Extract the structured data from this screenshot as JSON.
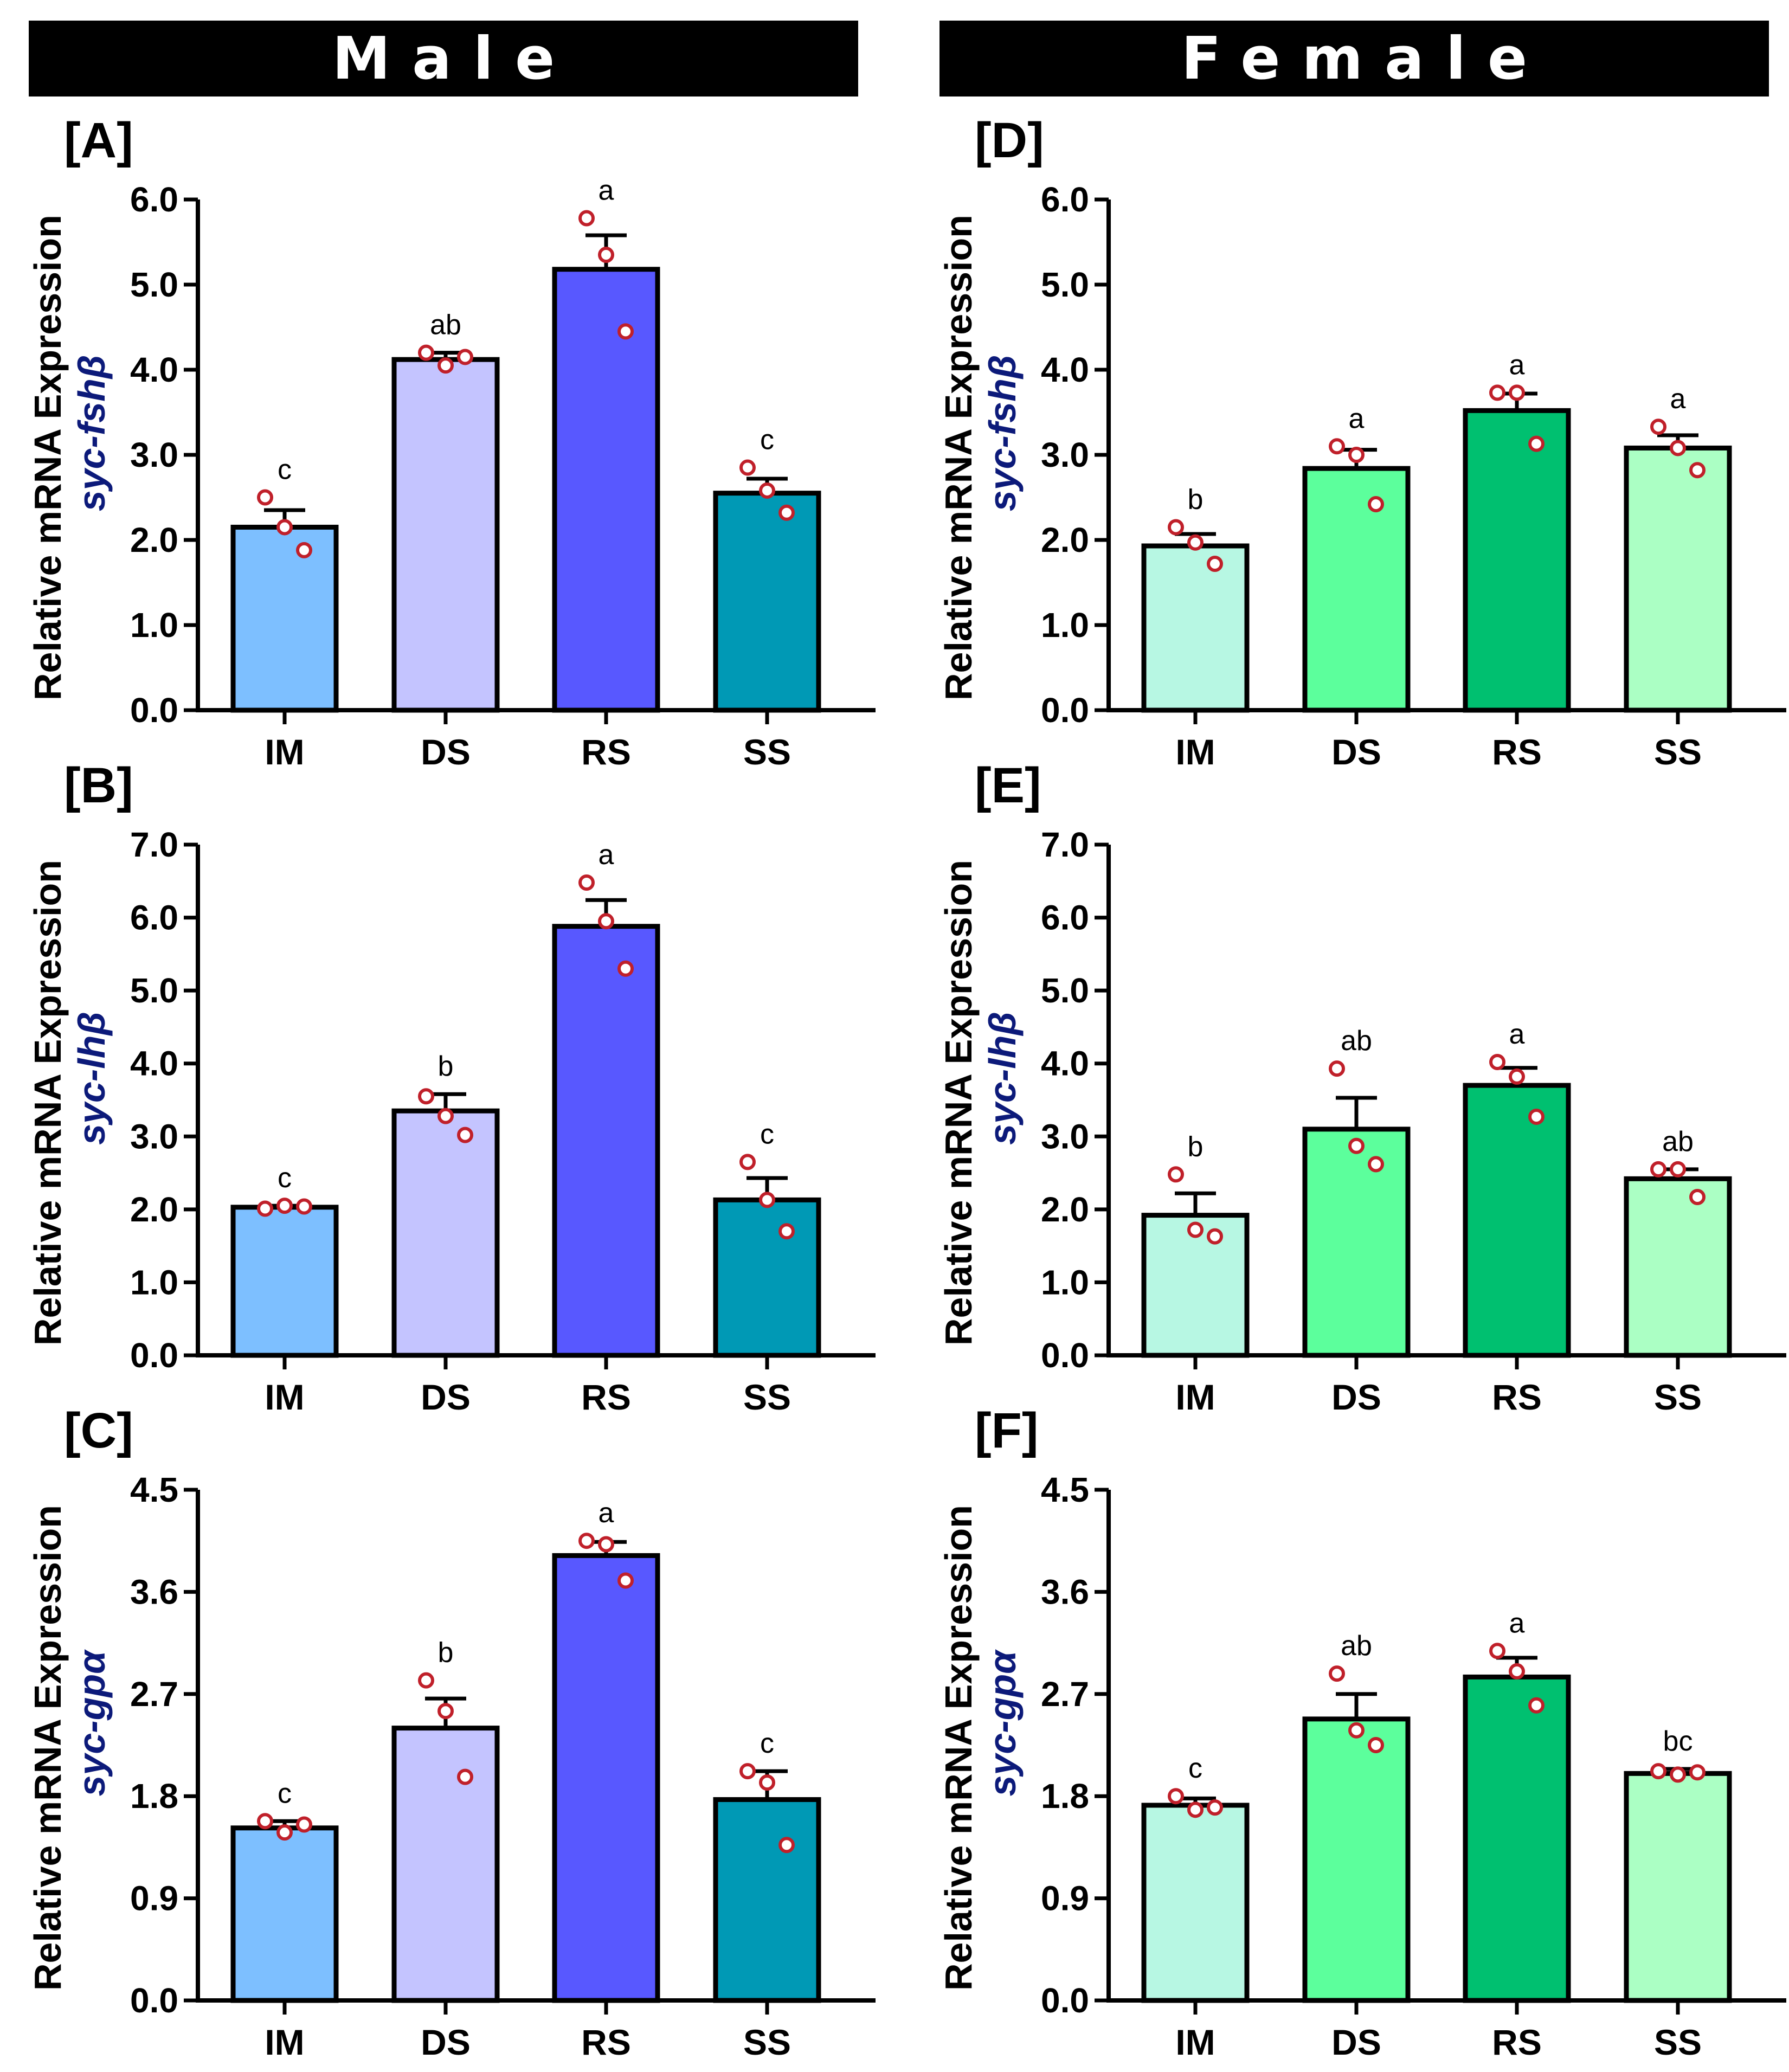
{
  "headers": {
    "male": "Male",
    "female": "Female"
  },
  "chart_data": [
    {
      "id": "A",
      "panel_label": "[A]",
      "type": "bar",
      "ylabel": "Relative mRNA Expression",
      "gene": "syc-fshβ",
      "categories": [
        "IM",
        "DS",
        "RS",
        "SS"
      ],
      "values": [
        2.15,
        4.12,
        5.18,
        2.55
      ],
      "errors": [
        0.2,
        0.08,
        0.4,
        0.17
      ],
      "points": [
        [
          2.5,
          2.15,
          1.88
        ],
        [
          4.2,
          4.05,
          4.15
        ],
        [
          5.78,
          5.35,
          4.45
        ],
        [
          2.85,
          2.58,
          2.32
        ]
      ],
      "letters": [
        "c",
        "ab",
        "a",
        "c"
      ],
      "ylim": [
        0,
        6.0
      ],
      "yticks": [
        "0.0",
        "1.0",
        "2.0",
        "3.0",
        "4.0",
        "5.0",
        "6.0"
      ],
      "colors": [
        "#7dbfff",
        "#c4c4ff",
        "#5858ff",
        "#0099b5"
      ]
    },
    {
      "id": "B",
      "panel_label": "[B]",
      "type": "bar",
      "ylabel": "Relative mRNA Expression",
      "gene": "syc-lhβ",
      "categories": [
        "IM",
        "DS",
        "RS",
        "SS"
      ],
      "values": [
        2.03,
        3.35,
        5.88,
        2.13
      ],
      "errors": [
        0.02,
        0.23,
        0.36,
        0.3
      ],
      "points": [
        [
          2.01,
          2.05,
          2.04
        ],
        [
          3.55,
          3.28,
          3.02
        ],
        [
          6.48,
          5.95,
          5.3
        ],
        [
          2.65,
          2.13,
          1.7
        ]
      ],
      "letters": [
        "c",
        "b",
        "a",
        "c"
      ],
      "ylim": [
        0,
        7.0
      ],
      "yticks": [
        "0.0",
        "1.0",
        "2.0",
        "3.0",
        "4.0",
        "5.0",
        "6.0",
        "7.0"
      ],
      "colors": [
        "#7dbfff",
        "#c4c4ff",
        "#5858ff",
        "#0099b5"
      ]
    },
    {
      "id": "C",
      "panel_label": "[C]",
      "type": "bar",
      "ylabel": "Relative mRNA Expression",
      "gene": "syc-gpα",
      "categories": [
        "IM",
        "DS",
        "RS",
        "SS"
      ],
      "values": [
        1.52,
        2.4,
        3.92,
        1.77
      ],
      "errors": [
        0.06,
        0.26,
        0.12,
        0.25
      ],
      "points": [
        [
          1.58,
          1.48,
          1.55
        ],
        [
          2.82,
          2.55,
          1.97
        ],
        [
          4.05,
          4.02,
          3.7
        ],
        [
          2.02,
          1.92,
          1.37
        ]
      ],
      "letters": [
        "c",
        "b",
        "a",
        "c"
      ],
      "ylim": [
        0,
        4.5
      ],
      "yticks": [
        "0.0",
        "0.9",
        "1.8",
        "2.7",
        "3.6",
        "4.5"
      ],
      "colors": [
        "#7dbfff",
        "#c4c4ff",
        "#5858ff",
        "#0099b5"
      ]
    },
    {
      "id": "D",
      "panel_label": "[D]",
      "type": "bar",
      "ylabel": "Relative mRNA Expression",
      "gene": "syc-fshβ",
      "categories": [
        "IM",
        "DS",
        "RS",
        "SS"
      ],
      "values": [
        1.93,
        2.84,
        3.52,
        3.08
      ],
      "errors": [
        0.14,
        0.22,
        0.2,
        0.15
      ],
      "points": [
        [
          2.15,
          1.97,
          1.72
        ],
        [
          3.1,
          3.0,
          2.42
        ],
        [
          3.73,
          3.73,
          3.13
        ],
        [
          3.33,
          3.08,
          2.82
        ]
      ],
      "letters": [
        "b",
        "a",
        "a",
        "a"
      ],
      "ylim": [
        0,
        6.0
      ],
      "yticks": [
        "0.0",
        "1.0",
        "2.0",
        "3.0",
        "4.0",
        "5.0",
        "6.0"
      ],
      "colors": [
        "#b7f7e3",
        "#5cff9c",
        "#00c070",
        "#abffc4"
      ]
    },
    {
      "id": "E",
      "panel_label": "[E]",
      "type": "bar",
      "ylabel": "Relative mRNA Expression",
      "gene": "syc-lhβ",
      "categories": [
        "IM",
        "DS",
        "RS",
        "SS"
      ],
      "values": [
        1.92,
        3.1,
        3.7,
        2.42
      ],
      "errors": [
        0.3,
        0.43,
        0.24,
        0.13
      ],
      "points": [
        [
          2.48,
          1.72,
          1.63
        ],
        [
          3.93,
          2.87,
          2.62
        ],
        [
          4.02,
          3.82,
          3.27
        ],
        [
          2.55,
          2.55,
          2.17
        ]
      ],
      "letters": [
        "b",
        "ab",
        "a",
        "ab"
      ],
      "ylim": [
        0,
        7.0
      ],
      "yticks": [
        "0.0",
        "1.0",
        "2.0",
        "3.0",
        "4.0",
        "5.0",
        "6.0",
        "7.0"
      ],
      "colors": [
        "#b7f7e3",
        "#5cff9c",
        "#00c070",
        "#abffc4"
      ]
    },
    {
      "id": "F",
      "panel_label": "[F]",
      "type": "bar",
      "ylabel": "Relative mRNA Expression",
      "gene": "syc-gpα",
      "categories": [
        "IM",
        "DS",
        "RS",
        "SS"
      ],
      "values": [
        1.72,
        2.48,
        2.85,
        2.0
      ],
      "errors": [
        0.06,
        0.22,
        0.17,
        0.04
      ],
      "points": [
        [
          1.8,
          1.68,
          1.7
        ],
        [
          2.88,
          2.38,
          2.25
        ],
        [
          3.08,
          2.9,
          2.6
        ],
        [
          2.02,
          1.99,
          2.01
        ]
      ],
      "letters": [
        "c",
        "ab",
        "a",
        "bc"
      ],
      "ylim": [
        0,
        4.5
      ],
      "yticks": [
        "0.0",
        "0.9",
        "1.8",
        "2.7",
        "3.6",
        "4.5"
      ],
      "colors": [
        "#b7f7e3",
        "#5cff9c",
        "#00c070",
        "#abffc4"
      ]
    }
  ]
}
